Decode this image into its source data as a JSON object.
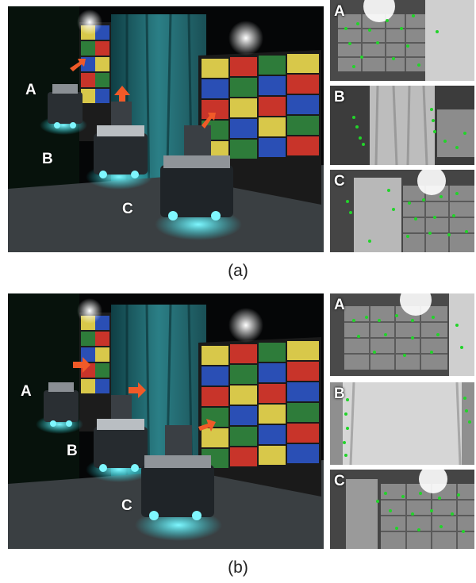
{
  "figure_a": {
    "caption": "(a)",
    "robot_labels": [
      "A",
      "B",
      "C"
    ],
    "thumbnails": [
      {
        "label": "A"
      },
      {
        "label": "B"
      },
      {
        "label": "C"
      }
    ]
  },
  "figure_b": {
    "caption": "(b)",
    "robot_labels": [
      "A",
      "B",
      "C"
    ],
    "thumbnails": [
      {
        "label": "A"
      },
      {
        "label": "B"
      },
      {
        "label": "C"
      }
    ]
  },
  "colors": {
    "arrow": "#f05a28",
    "feature_point": "#22d42a",
    "robot_glow": "#26e6f0",
    "curtain": "#2b7f86"
  }
}
